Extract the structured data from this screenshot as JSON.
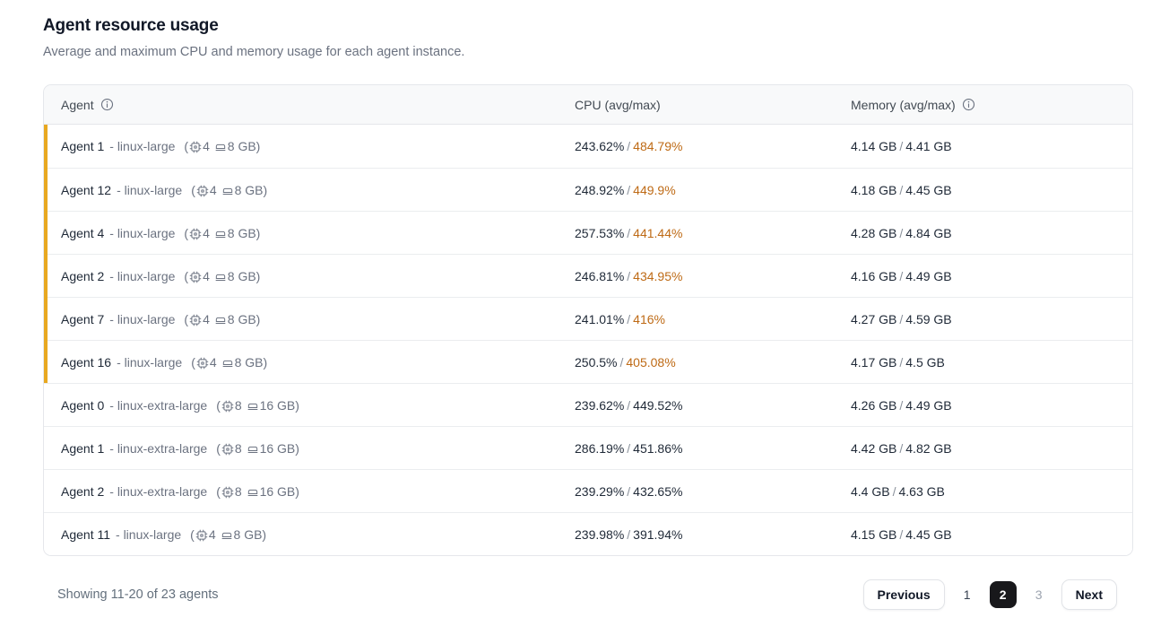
{
  "header": {
    "title": "Agent resource usage",
    "subtitle": "Average and maximum CPU and memory usage for each agent instance."
  },
  "table": {
    "columns": [
      {
        "label": "Agent",
        "info": true
      },
      {
        "label": "CPU (avg/max)",
        "info": false
      },
      {
        "label": "Memory (avg/max)",
        "info": true
      }
    ],
    "rows": [
      {
        "name": "Agent 1",
        "type": "linux-large",
        "cpus": "4",
        "ram": "8 GB",
        "cpu_avg": "243.62%",
        "cpu_max": "484.79%",
        "mem_avg": "4.14 GB",
        "mem_max": "4.41 GB",
        "highlighted": true
      },
      {
        "name": "Agent 12",
        "type": "linux-large",
        "cpus": "4",
        "ram": "8 GB",
        "cpu_avg": "248.92%",
        "cpu_max": "449.9%",
        "mem_avg": "4.18 GB",
        "mem_max": "4.45 GB",
        "highlighted": true
      },
      {
        "name": "Agent 4",
        "type": "linux-large",
        "cpus": "4",
        "ram": "8 GB",
        "cpu_avg": "257.53%",
        "cpu_max": "441.44%",
        "mem_avg": "4.28 GB",
        "mem_max": "4.84 GB",
        "highlighted": true
      },
      {
        "name": "Agent 2",
        "type": "linux-large",
        "cpus": "4",
        "ram": "8 GB",
        "cpu_avg": "246.81%",
        "cpu_max": "434.95%",
        "mem_avg": "4.16 GB",
        "mem_max": "4.49 GB",
        "highlighted": true
      },
      {
        "name": "Agent 7",
        "type": "linux-large",
        "cpus": "4",
        "ram": "8 GB",
        "cpu_avg": "241.01%",
        "cpu_max": "416%",
        "mem_avg": "4.27 GB",
        "mem_max": "4.59 GB",
        "highlighted": true
      },
      {
        "name": "Agent 16",
        "type": "linux-large",
        "cpus": "4",
        "ram": "8 GB",
        "cpu_avg": "250.5%",
        "cpu_max": "405.08%",
        "mem_avg": "4.17 GB",
        "mem_max": "4.5 GB",
        "highlighted": true
      },
      {
        "name": "Agent 0",
        "type": "linux-extra-large",
        "cpus": "8",
        "ram": "16 GB",
        "cpu_avg": "239.62%",
        "cpu_max": "449.52%",
        "mem_avg": "4.26 GB",
        "mem_max": "4.49 GB",
        "highlighted": false
      },
      {
        "name": "Agent 1",
        "type": "linux-extra-large",
        "cpus": "8",
        "ram": "16 GB",
        "cpu_avg": "286.19%",
        "cpu_max": "451.86%",
        "mem_avg": "4.42 GB",
        "mem_max": "4.82 GB",
        "highlighted": false
      },
      {
        "name": "Agent 2",
        "type": "linux-extra-large",
        "cpus": "8",
        "ram": "16 GB",
        "cpu_avg": "239.29%",
        "cpu_max": "432.65%",
        "mem_avg": "4.4 GB",
        "mem_max": "4.63 GB",
        "highlighted": false
      },
      {
        "name": "Agent 11",
        "type": "linux-large",
        "cpus": "4",
        "ram": "8 GB",
        "cpu_avg": "239.98%",
        "cpu_max": "391.94%",
        "mem_avg": "4.15 GB",
        "mem_max": "4.45 GB",
        "highlighted": false
      }
    ]
  },
  "footer": {
    "summary": "Showing 11-20 of 23 agents",
    "previous_label": "Previous",
    "next_label": "Next",
    "pages": [
      {
        "label": "1",
        "state": "default"
      },
      {
        "label": "2",
        "state": "active"
      },
      {
        "label": "3",
        "state": "muted"
      }
    ]
  },
  "colors": {
    "highlight_bar": "#e8a820",
    "highlight_text": "#be6a15",
    "active_page_bg": "#18181b"
  }
}
